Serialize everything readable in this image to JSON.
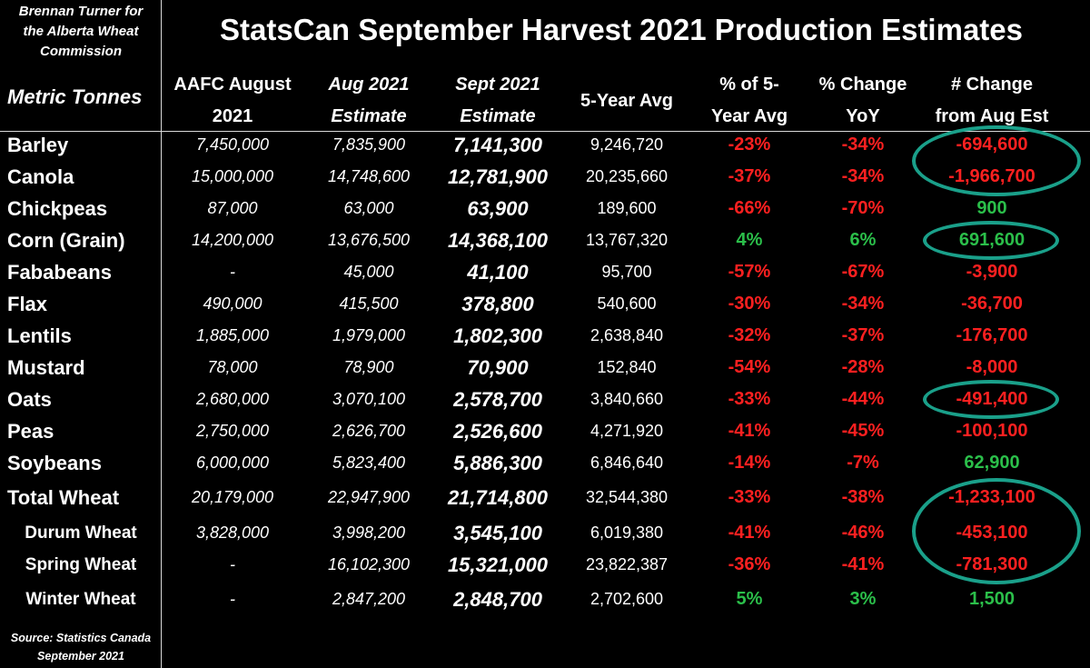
{
  "header": {
    "author_lines": [
      "Brennan Turner for",
      "the Alberta Wheat",
      "Commission"
    ],
    "title": "StatsCan September Harvest 2021 Production Estimates",
    "units_label": "Metric Tonnes"
  },
  "columns": [
    {
      "lines": [
        "AAFC August",
        "2021"
      ]
    },
    {
      "lines": [
        "Aug 2021",
        "Estimate"
      ]
    },
    {
      "lines": [
        "Sept 2021",
        "Estimate"
      ]
    },
    {
      "lines": [
        "5-Year Avg"
      ]
    },
    {
      "lines": [
        "% of 5-",
        "Year Avg"
      ]
    },
    {
      "lines": [
        "% Change",
        "YoY"
      ]
    },
    {
      "lines": [
        "# Change",
        "from Aug Est"
      ]
    }
  ],
  "chart_data": {
    "type": "table",
    "title": "StatsCan September Harvest 2021 Production Estimates",
    "units": "Metric Tonnes",
    "columns": [
      "AAFC August 2021",
      "Aug 2021 Estimate",
      "Sept 2021 Estimate",
      "5-Year Avg",
      "% of 5-Year Avg",
      "% Change YoY",
      "# Change from Aug Est"
    ],
    "rows": [
      {
        "crop": "Barley",
        "aafc": "7,450,000",
        "aug": "7,835,900",
        "sept": "7,141,300",
        "avg": "9,246,720",
        "pct_avg": "-23%",
        "yoy": "-34%",
        "change": "-694,600",
        "circled": true
      },
      {
        "crop": "Canola",
        "aafc": "15,000,000",
        "aug": "14,748,600",
        "sept": "12,781,900",
        "avg": "20,235,660",
        "pct_avg": "-37%",
        "yoy": "-34%",
        "change": "-1,966,700",
        "circled": true
      },
      {
        "crop": "Chickpeas",
        "aafc": "87,000",
        "aug": "63,000",
        "sept": "63,900",
        "avg": "189,600",
        "pct_avg": "-66%",
        "yoy": "-70%",
        "change": "900",
        "circled": false
      },
      {
        "crop": "Corn (Grain)",
        "aafc": "14,200,000",
        "aug": "13,676,500",
        "sept": "14,368,100",
        "avg": "13,767,320",
        "pct_avg": "4%",
        "yoy": "6%",
        "change": "691,600",
        "circled": true
      },
      {
        "crop": "Fababeans",
        "aafc": "-",
        "aug": "45,000",
        "sept": "41,100",
        "avg": "95,700",
        "pct_avg": "-57%",
        "yoy": "-67%",
        "change": "-3,900",
        "circled": false
      },
      {
        "crop": "Flax",
        "aafc": "490,000",
        "aug": "415,500",
        "sept": "378,800",
        "avg": "540,600",
        "pct_avg": "-30%",
        "yoy": "-34%",
        "change": "-36,700",
        "circled": false
      },
      {
        "crop": "Lentils",
        "aafc": "1,885,000",
        "aug": "1,979,000",
        "sept": "1,802,300",
        "avg": "2,638,840",
        "pct_avg": "-32%",
        "yoy": "-37%",
        "change": "-176,700",
        "circled": false
      },
      {
        "crop": "Mustard",
        "aafc": "78,000",
        "aug": "78,900",
        "sept": "70,900",
        "avg": "152,840",
        "pct_avg": "-54%",
        "yoy": "-28%",
        "change": "-8,000",
        "circled": false
      },
      {
        "crop": "Oats",
        "aafc": "2,680,000",
        "aug": "3,070,100",
        "sept": "2,578,700",
        "avg": "3,840,660",
        "pct_avg": "-33%",
        "yoy": "-44%",
        "change": "-491,400",
        "circled": true
      },
      {
        "crop": "Peas",
        "aafc": "2,750,000",
        "aug": "2,626,700",
        "sept": "2,526,600",
        "avg": "4,271,920",
        "pct_avg": "-41%",
        "yoy": "-45%",
        "change": "-100,100",
        "circled": false
      },
      {
        "crop": "Soybeans",
        "aafc": "6,000,000",
        "aug": "5,823,400",
        "sept": "5,886,300",
        "avg": "6,846,640",
        "pct_avg": "-14%",
        "yoy": "-7%",
        "change": "62,900",
        "circled": false
      },
      {
        "crop": "Total Wheat",
        "aafc": "20,179,000",
        "aug": "22,947,900",
        "sept": "21,714,800",
        "avg": "32,544,380",
        "pct_avg": "-33%",
        "yoy": "-38%",
        "change": "-1,233,100",
        "circled": true
      },
      {
        "crop": "Durum Wheat",
        "aafc": "3,828,000",
        "aug": "3,998,200",
        "sept": "3,545,100",
        "avg": "6,019,380",
        "pct_avg": "-41%",
        "yoy": "-46%",
        "change": "-453,100",
        "circled": true,
        "sub": true
      },
      {
        "crop": "Spring Wheat",
        "aafc": "-",
        "aug": "16,102,300",
        "sept": "15,321,000",
        "avg": "23,822,387",
        "pct_avg": "-36%",
        "yoy": "-41%",
        "change": "-781,300",
        "circled": true,
        "sub": true
      },
      {
        "crop": "Winter Wheat",
        "aafc": "-",
        "aug": "2,847,200",
        "sept": "2,848,700",
        "avg": "2,702,600",
        "pct_avg": "5%",
        "yoy": "3%",
        "change": "1,500",
        "circled": false,
        "sub": true
      }
    ],
    "colors": {
      "negative": "#ff2020",
      "positive": "#2bbf4a",
      "circle": "#1aa08a",
      "background": "#000000",
      "text": "#ffffff"
    }
  },
  "footer": {
    "source_lines": [
      "Source: Statistics Canada",
      "September 2021"
    ]
  }
}
